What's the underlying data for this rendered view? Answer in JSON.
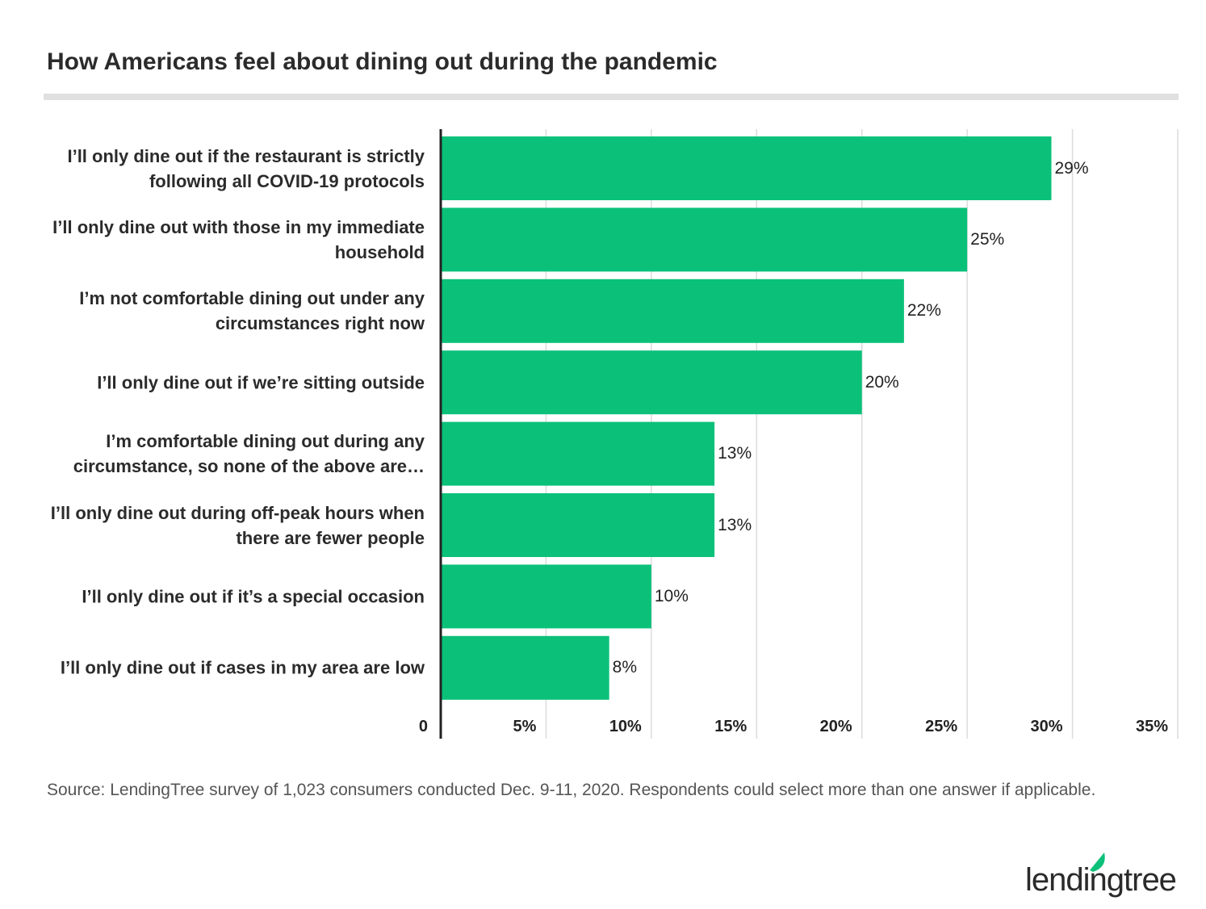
{
  "chart_data": {
    "type": "bar",
    "orientation": "horizontal",
    "title": "How Americans feel about dining out during the pandemic",
    "categories": [
      "I’ll only dine out if the restaurant is strictly following all COVID-19 protocols",
      "I’ll only dine out with those in my immediate household",
      "I’m not comfortable dining out under any circumstances right now",
      "I’ll only dine out if we’re sitting outside",
      "I’m comfortable dining out during any circumstance, so none of the above are…",
      "I’ll only dine out during off-peak hours when there are fewer people",
      "I’ll only dine out if it’s a special occasion",
      "I’ll only dine out if cases in my area are low"
    ],
    "values": [
      29,
      25,
      22,
      20,
      13,
      13,
      10,
      8
    ],
    "value_labels": [
      "29%",
      "25%",
      "22%",
      "20%",
      "13%",
      "13%",
      "10%",
      "8%"
    ],
    "color": "#0bc17a",
    "xlim": [
      0,
      35
    ],
    "xticks": [
      0,
      {
        "value": 5,
        "label": "5%"
      },
      {
        "value": 10,
        "label": "10%"
      },
      {
        "value": 15,
        "label": "15%"
      },
      {
        "value": 20,
        "label": "20%"
      },
      {
        "value": 25,
        "label": "25%"
      },
      {
        "value": 30,
        "label": "30%"
      },
      {
        "value": 35,
        "label": "35%"
      }
    ],
    "grid": true,
    "source": "Source: LendingTree survey of 1,023 consumers conducted Dec. 9-11, 2020. Respondents could select more than one answer if applicable.",
    "logo": "lendingtree"
  }
}
